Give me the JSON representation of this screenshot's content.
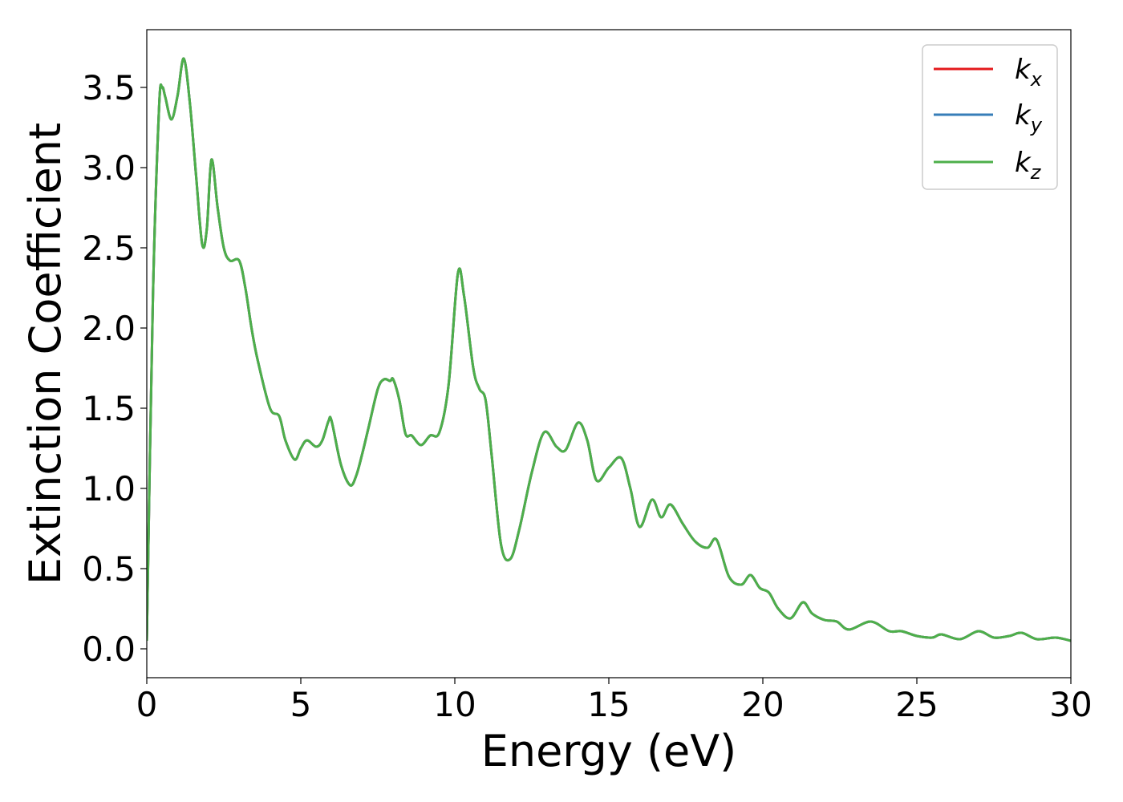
{
  "chart_data": {
    "type": "line",
    "title": "",
    "xlabel": "Energy (eV)",
    "ylabel": "Extinction Coefficient",
    "xlim": [
      0,
      30
    ],
    "ylim": [
      -0.18,
      3.86
    ],
    "xticks": [
      0,
      5,
      10,
      15,
      20,
      25,
      30
    ],
    "xtick_labels": [
      "0",
      "5",
      "10",
      "15",
      "20",
      "25",
      "30"
    ],
    "yticks": [
      0.0,
      0.5,
      1.0,
      1.5,
      2.0,
      2.5,
      3.0,
      3.5
    ],
    "ytick_labels": [
      "0.0",
      "0.5",
      "1.0",
      "1.5",
      "2.0",
      "2.5",
      "3.0",
      "3.5"
    ],
    "grid": false,
    "legend_position": "top-right",
    "x": [
      0.0,
      0.2,
      0.4,
      0.5,
      0.6,
      0.8,
      1.0,
      1.2,
      1.4,
      1.6,
      1.8,
      1.95,
      2.1,
      2.3,
      2.5,
      2.7,
      3.0,
      3.2,
      3.4,
      3.6,
      4.0,
      4.3,
      4.5,
      4.8,
      5.0,
      5.2,
      5.5,
      5.7,
      5.9,
      6.0,
      6.3,
      6.6,
      6.8,
      7.0,
      7.2,
      7.5,
      7.7,
      7.9,
      8.0,
      8.2,
      8.4,
      8.6,
      8.9,
      9.2,
      9.5,
      9.8,
      10.1,
      10.3,
      10.6,
      10.8,
      11.0,
      11.2,
      11.5,
      11.8,
      12.1,
      12.5,
      12.9,
      13.3,
      13.6,
      14.0,
      14.3,
      14.6,
      15.0,
      15.4,
      15.7,
      16.0,
      16.4,
      16.7,
      17.0,
      17.4,
      17.8,
      18.2,
      18.5,
      18.9,
      19.3,
      19.6,
      19.9,
      20.2,
      20.5,
      20.9,
      21.3,
      21.6,
      22.0,
      22.4,
      22.8,
      23.5,
      24.1,
      24.5,
      25.0,
      25.5,
      25.8,
      26.4,
      27.0,
      27.5,
      28.0,
      28.4,
      28.9,
      29.5,
      30.0
    ],
    "series": [
      {
        "name": "k_x",
        "color": "#e41a1c"
      },
      {
        "name": "k_y",
        "color": "#377eb8"
      },
      {
        "name": "k_z",
        "color": "#4daf4a"
      }
    ],
    "y": [
      0.05,
      2.2,
      3.38,
      3.5,
      3.44,
      3.3,
      3.45,
      3.68,
      3.4,
      2.95,
      2.52,
      2.62,
      3.05,
      2.75,
      2.5,
      2.42,
      2.42,
      2.25,
      2.0,
      1.8,
      1.5,
      1.45,
      1.3,
      1.18,
      1.25,
      1.3,
      1.26,
      1.3,
      1.42,
      1.42,
      1.15,
      1.02,
      1.08,
      1.22,
      1.38,
      1.62,
      1.68,
      1.67,
      1.68,
      1.55,
      1.34,
      1.33,
      1.27,
      1.33,
      1.35,
      1.65,
      2.34,
      2.2,
      1.75,
      1.62,
      1.55,
      1.2,
      0.65,
      0.56,
      0.75,
      1.1,
      1.35,
      1.26,
      1.24,
      1.41,
      1.3,
      1.05,
      1.13,
      1.19,
      1.0,
      0.76,
      0.93,
      0.82,
      0.9,
      0.78,
      0.67,
      0.63,
      0.68,
      0.45,
      0.4,
      0.46,
      0.38,
      0.35,
      0.25,
      0.19,
      0.29,
      0.22,
      0.18,
      0.17,
      0.12,
      0.17,
      0.11,
      0.11,
      0.08,
      0.07,
      0.09,
      0.06,
      0.11,
      0.07,
      0.08,
      0.1,
      0.06,
      0.07,
      0.05
    ]
  }
}
